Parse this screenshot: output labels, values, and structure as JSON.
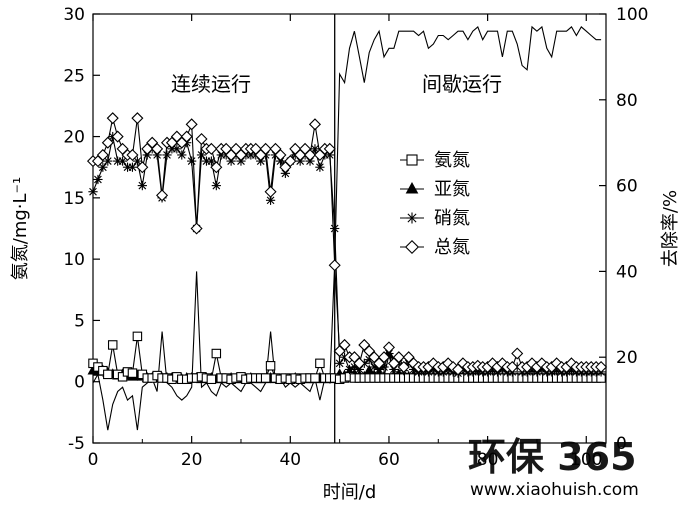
{
  "chart_data": {
    "type": "line",
    "xlabel": "时间/d",
    "ylabel_left": "氨氮/mg·L⁻¹",
    "ylabel_right": "去除率/%",
    "xlim": [
      0,
      104
    ],
    "ylim_left": [
      -5,
      30
    ],
    "ylim_right": [
      0,
      100
    ],
    "x_ticks": [
      0,
      20,
      40,
      60,
      80,
      100
    ],
    "y_left_ticks": [
      -5,
      0,
      5,
      10,
      15,
      20,
      25,
      30
    ],
    "y_right_ticks": [
      0,
      20,
      40,
      60,
      80,
      100
    ],
    "phase_boundary_x": 49,
    "phase_labels": [
      "连续运行",
      "间歇运行"
    ],
    "legend": {
      "position": "right-center",
      "entries": [
        {
          "label": "氨氮",
          "marker": "square"
        },
        {
          "label": "亚氮",
          "marker": "triangle"
        },
        {
          "label": "硝氮",
          "marker": "asterisk"
        },
        {
          "label": "总氮",
          "marker": "diamond"
        }
      ]
    },
    "series": [
      {
        "name": "氨氮",
        "axis": "left",
        "marker": "square",
        "x": [
          0,
          1,
          2,
          3,
          4,
          5,
          6,
          7,
          8,
          9,
          10,
          11,
          12,
          13,
          14,
          15,
          16,
          17,
          18,
          19,
          20,
          21,
          22,
          23,
          24,
          25,
          26,
          27,
          28,
          29,
          30,
          31,
          32,
          33,
          34,
          35,
          36,
          37,
          38,
          39,
          40,
          41,
          42,
          43,
          44,
          45,
          46,
          47,
          48,
          49,
          50,
          51,
          52,
          53,
          54,
          55,
          56,
          57,
          58,
          59,
          60,
          61,
          62,
          63,
          64,
          65,
          66,
          67,
          68,
          69,
          70,
          71,
          72,
          73,
          74,
          75,
          76,
          77,
          78,
          79,
          80,
          81,
          82,
          83,
          84,
          85,
          86,
          87,
          88,
          89,
          90,
          91,
          92,
          93,
          94,
          95,
          96,
          97,
          98,
          99,
          100,
          101,
          102,
          103
        ],
        "values": [
          1.5,
          1.2,
          0.9,
          0.6,
          3.0,
          0.6,
          0.4,
          0.8,
          0.7,
          3.7,
          0.6,
          0.3,
          0.3,
          0.5,
          0.3,
          0.3,
          0.2,
          0.4,
          0.2,
          0.2,
          0.3,
          0.3,
          0.4,
          0.3,
          0.2,
          2.3,
          0.3,
          0.3,
          0.2,
          0.3,
          0.4,
          0.2,
          0.3,
          0.3,
          0.3,
          0.3,
          1.3,
          0.3,
          0.2,
          0.3,
          0.2,
          0.3,
          0.2,
          0.3,
          0.3,
          0.3,
          1.5,
          0.3,
          0.3,
          0.3,
          0.2,
          0.3,
          0.4,
          0.3,
          0.3,
          0.3,
          0.3,
          0.3,
          0.3,
          0.3,
          0.3,
          0.3,
          0.3,
          0.3,
          0.3,
          0.3,
          0.3,
          0.3,
          0.3,
          0.3,
          0.3,
          0.3,
          0.3,
          0.3,
          0.3,
          0.3,
          0.3,
          0.3,
          0.3,
          0.3,
          0.3,
          0.3,
          0.3,
          0.3,
          0.3,
          0.3,
          0.3,
          0.3,
          0.3,
          0.3,
          0.3,
          0.3,
          0.3,
          0.3,
          0.3,
          0.3,
          0.3,
          0.3,
          0.3,
          0.3,
          0.3,
          0.3,
          0.3,
          0.3
        ]
      },
      {
        "name": "亚氮",
        "axis": "left",
        "marker": "triangle",
        "x": [
          0,
          1,
          2,
          3,
          4,
          5,
          6,
          7,
          8,
          9,
          10,
          11,
          12,
          13,
          14,
          15,
          16,
          17,
          18,
          19,
          20,
          21,
          22,
          23,
          24,
          25,
          26,
          27,
          28,
          29,
          30,
          31,
          32,
          33,
          34,
          35,
          36,
          37,
          38,
          39,
          40,
          41,
          42,
          43,
          44,
          45,
          46,
          47,
          48,
          49,
          50,
          51,
          52,
          53,
          54,
          55,
          56,
          57,
          58,
          59,
          60,
          61,
          62,
          63,
          64,
          65,
          66,
          67,
          68,
          69,
          70,
          71,
          72,
          73,
          74,
          75,
          76,
          77,
          78,
          79,
          80,
          81,
          82,
          83,
          84,
          85,
          86,
          87,
          88,
          89,
          90,
          91,
          92,
          93,
          94,
          95,
          96,
          97,
          98,
          99,
          100,
          101,
          102,
          103
        ],
        "values": [
          0.9,
          0.8,
          0.9,
          0.7,
          0.6,
          0.5,
          0.6,
          0.5,
          0.4,
          0.5,
          0.4,
          0.3,
          0.3,
          0.4,
          0.3,
          0.3,
          0.3,
          0.3,
          0.2,
          0.3,
          0.3,
          0.3,
          0.2,
          0.3,
          0.3,
          0.2,
          0.2,
          0.2,
          0.3,
          0.2,
          0.2,
          0.2,
          0.3,
          0.2,
          0.2,
          0.2,
          0.3,
          0.2,
          0.2,
          0.2,
          0.2,
          0.3,
          0.2,
          0.2,
          0.2,
          0.2,
          0.3,
          0.2,
          0.2,
          0.3,
          0.6,
          0.5,
          0.8,
          0.6,
          0.5,
          0.4,
          0.9,
          0.5,
          0.6,
          0.4,
          2.2,
          0.5,
          0.6,
          0.4,
          0.4,
          0.5,
          0.4,
          0.4,
          0.5,
          0.4,
          0.4,
          0.3,
          0.4,
          0.4,
          0.3,
          0.4,
          0.3,
          0.3,
          0.4,
          0.3,
          0.3,
          0.3,
          0.4,
          0.3,
          0.3,
          0.3,
          0.3,
          0.4,
          0.3,
          0.3,
          0.3,
          0.3,
          0.3,
          0.4,
          0.3,
          0.3,
          0.3,
          0.3,
          0.3,
          0.3,
          0.3,
          0.3,
          0.3,
          0.3
        ]
      },
      {
        "name": "硝氮",
        "axis": "left",
        "marker": "asterisk",
        "x": [
          0,
          1,
          2,
          3,
          4,
          5,
          6,
          7,
          8,
          9,
          10,
          11,
          12,
          13,
          14,
          15,
          16,
          17,
          18,
          19,
          20,
          21,
          22,
          23,
          24,
          25,
          26,
          27,
          28,
          29,
          30,
          31,
          32,
          33,
          34,
          35,
          36,
          37,
          38,
          39,
          40,
          41,
          42,
          43,
          44,
          45,
          46,
          47,
          48,
          49,
          50,
          51,
          52,
          53,
          54,
          55,
          56,
          57,
          58,
          59,
          60,
          61,
          62,
          63,
          64,
          65,
          66,
          67,
          68,
          69,
          70,
          71,
          72,
          73,
          74,
          75,
          76,
          77,
          78,
          79,
          80,
          81,
          82,
          83,
          84,
          85,
          86,
          87,
          88,
          89,
          90,
          91,
          92,
          93,
          94,
          95,
          96,
          97,
          98,
          99,
          100,
          101,
          102,
          103
        ],
        "values": [
          15.5,
          16.5,
          17.5,
          18.0,
          20.0,
          18.0,
          18.0,
          17.5,
          17.5,
          18.0,
          16.0,
          18.5,
          19.0,
          18.5,
          15.0,
          18.5,
          19.0,
          19.0,
          18.5,
          19.5,
          18.0,
          12.5,
          18.5,
          18.0,
          18.0,
          16.0,
          18.5,
          18.5,
          18.0,
          18.5,
          18.0,
          18.5,
          18.5,
          18.5,
          18.0,
          18.5,
          14.8,
          18.5,
          18.0,
          17.0,
          18.0,
          18.5,
          18.0,
          18.5,
          18.0,
          19.0,
          17.5,
          18.5,
          18.5,
          12.5,
          1.5,
          2.0,
          1.0,
          1.2,
          1.0,
          1.5,
          1.8,
          1.2,
          1.0,
          1.2,
          2.3,
          1.0,
          1.5,
          0.9,
          1.5,
          1.0,
          0.8,
          0.9,
          0.8,
          1.0,
          0.8,
          0.8,
          1.0,
          0.8,
          0.7,
          1.0,
          0.8,
          0.8,
          0.9,
          0.8,
          0.8,
          0.9,
          0.8,
          1.0,
          0.8,
          0.8,
          1.2,
          0.8,
          0.8,
          0.9,
          0.8,
          1.0,
          0.8,
          0.8,
          0.9,
          0.8,
          0.8,
          0.9,
          0.8,
          0.8,
          0.8,
          0.8,
          0.8,
          0.8
        ]
      },
      {
        "name": "总氮",
        "axis": "left",
        "marker": "diamond",
        "x": [
          0,
          1,
          2,
          3,
          4,
          5,
          6,
          7,
          8,
          9,
          10,
          11,
          12,
          13,
          14,
          15,
          16,
          17,
          18,
          19,
          20,
          21,
          22,
          23,
          24,
          25,
          26,
          27,
          28,
          29,
          30,
          31,
          32,
          33,
          34,
          35,
          36,
          37,
          38,
          39,
          40,
          41,
          42,
          43,
          44,
          45,
          46,
          47,
          48,
          49,
          50,
          51,
          52,
          53,
          54,
          55,
          56,
          57,
          58,
          59,
          60,
          61,
          62,
          63,
          64,
          65,
          66,
          67,
          68,
          69,
          70,
          71,
          72,
          73,
          74,
          75,
          76,
          77,
          78,
          79,
          80,
          81,
          82,
          83,
          84,
          85,
          86,
          87,
          88,
          89,
          90,
          91,
          92,
          93,
          94,
          95,
          96,
          97,
          98,
          99,
          100,
          101,
          102,
          103
        ],
        "values": [
          18.0,
          18.0,
          18.5,
          19.5,
          21.5,
          20.0,
          19.0,
          18.5,
          18.5,
          21.5,
          17.5,
          19.0,
          19.5,
          19.0,
          15.2,
          19.5,
          19.5,
          20.0,
          19.5,
          20.0,
          21.0,
          12.5,
          19.8,
          19.0,
          19.0,
          17.5,
          19.0,
          19.0,
          18.5,
          19.0,
          18.5,
          19.0,
          19.0,
          19.0,
          18.5,
          19.0,
          15.5,
          19.0,
          18.5,
          17.5,
          18.0,
          19.0,
          18.5,
          19.0,
          18.5,
          21.0,
          18.5,
          19.0,
          19.0,
          9.5,
          2.5,
          3.0,
          2.0,
          2.0,
          1.5,
          3.0,
          2.5,
          2.0,
          1.5,
          2.0,
          2.8,
          1.5,
          2.0,
          1.2,
          2.0,
          1.5,
          1.2,
          1.2,
          1.2,
          1.5,
          1.2,
          1.2,
          1.5,
          1.2,
          1.0,
          1.5,
          1.2,
          1.2,
          1.3,
          1.2,
          1.2,
          1.5,
          1.2,
          1.5,
          1.2,
          1.2,
          2.3,
          1.2,
          1.2,
          1.5,
          1.2,
          1.5,
          1.2,
          1.2,
          1.5,
          1.2,
          1.2,
          1.5,
          1.2,
          1.2,
          1.2,
          1.2,
          1.2,
          1.2
        ]
      },
      {
        "name": "去除率",
        "axis": "right",
        "marker": "none",
        "x": [
          0,
          1,
          2,
          3,
          4,
          5,
          6,
          7,
          8,
          9,
          10,
          11,
          12,
          13,
          14,
          15,
          16,
          17,
          18,
          19,
          20,
          21,
          22,
          23,
          24,
          25,
          26,
          27,
          28,
          29,
          30,
          31,
          32,
          33,
          34,
          35,
          36,
          37,
          38,
          39,
          40,
          41,
          42,
          43,
          44,
          45,
          46,
          47,
          48,
          49,
          50,
          51,
          52,
          53,
          54,
          55,
          56,
          57,
          58,
          59,
          60,
          61,
          62,
          63,
          64,
          65,
          66,
          67,
          68,
          69,
          70,
          71,
          72,
          73,
          74,
          75,
          76,
          77,
          78,
          79,
          80,
          81,
          82,
          83,
          84,
          85,
          86,
          87,
          88,
          89,
          90,
          91,
          92,
          93,
          94,
          95,
          96,
          97,
          98,
          99,
          100,
          101,
          102,
          103
        ],
        "values": [
          14,
          16,
          10,
          3,
          9,
          12,
          13,
          10,
          11,
          3,
          13,
          14,
          15,
          12,
          26,
          14,
          13,
          11,
          10,
          11,
          13,
          40,
          13,
          14,
          12,
          11,
          14,
          13,
          14,
          13,
          12,
          14,
          14,
          13,
          12,
          14,
          26,
          14,
          15,
          13,
          14,
          13,
          14,
          13,
          12,
          15,
          10,
          15,
          14,
          42,
          86,
          84,
          92,
          96,
          90,
          84,
          91,
          94,
          96,
          90,
          92,
          92,
          96,
          96,
          96,
          96,
          95,
          96,
          92,
          93,
          95,
          95,
          94,
          95,
          96,
          96,
          94,
          96,
          97,
          94,
          96,
          96,
          96,
          90,
          96,
          96,
          93,
          88,
          87,
          97,
          96,
          97,
          92,
          90,
          96,
          96,
          96,
          97,
          95,
          97,
          96,
          95,
          94,
          94
        ]
      }
    ]
  },
  "watermark": {
    "logo_text": "环保 365",
    "url": "www.xiaohuish.com"
  }
}
